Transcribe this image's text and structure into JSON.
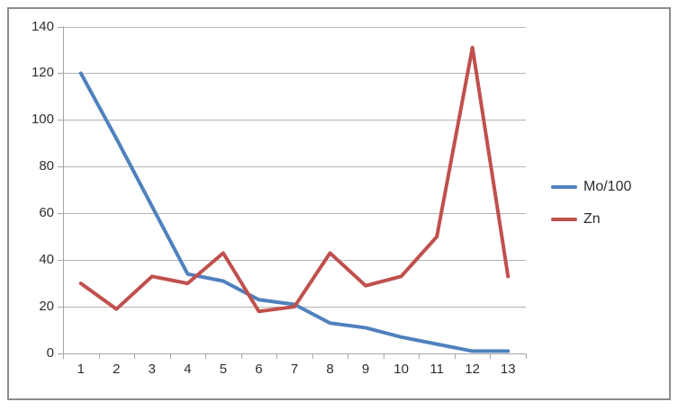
{
  "frame": {
    "border_color": "#8C8C8C",
    "background": "#FFFFFF"
  },
  "chart_data": {
    "type": "line",
    "categories": [
      "1",
      "2",
      "3",
      "4",
      "5",
      "6",
      "7",
      "8",
      "9",
      "10",
      "11",
      "12",
      "13"
    ],
    "series": [
      {
        "name": "Mo/100",
        "color": "#4F81BD",
        "values": [
          120,
          92,
          63,
          34,
          31,
          23,
          21,
          13,
          11,
          7,
          4,
          1,
          1
        ]
      },
      {
        "name": "Zn",
        "color": "#C0504D",
        "values": [
          30,
          19,
          33,
          30,
          43,
          18,
          20,
          43,
          29,
          33,
          50,
          131,
          33
        ]
      }
    ],
    "ylim": [
      0,
      140
    ],
    "ytick_step": 20,
    "y_tick_labels": [
      "0",
      "20",
      "40",
      "60",
      "80",
      "100",
      "120",
      "140"
    ],
    "grid": true,
    "legend_position": "right",
    "line_width": 4,
    "gridline_color": "#B3B3B3",
    "axis_color": "#A6A6A6",
    "tick_label_color": "#2E2E2E"
  }
}
